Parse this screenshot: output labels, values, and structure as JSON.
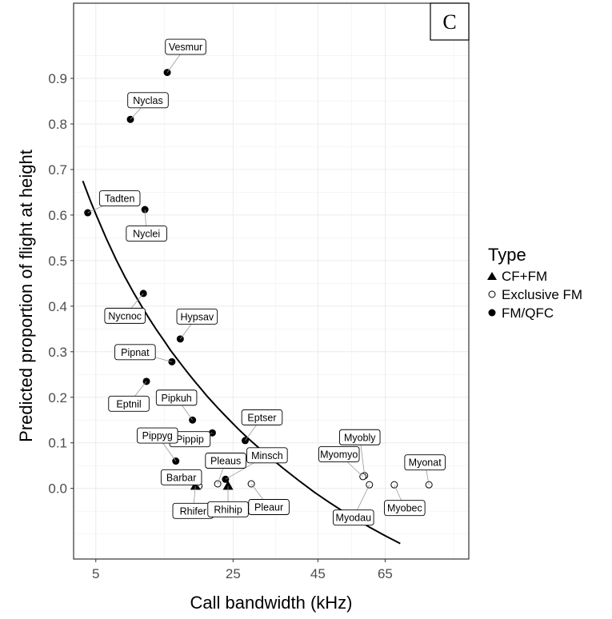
{
  "chart_data": {
    "type": "scatter",
    "panel_label": "C",
    "xlabel": "Call bandwidth (kHz)",
    "ylabel": "Predicted proportion of flight at height",
    "x_scale": "sqrt",
    "xlim": [
      3.2,
      95
    ],
    "ylim": [
      -0.155,
      1.065
    ],
    "x_ticks": [
      5,
      25,
      45,
      65
    ],
    "y_ticks": [
      0.0,
      0.1,
      0.2,
      0.3,
      0.4,
      0.5,
      0.6,
      0.7,
      0.8,
      0.9
    ],
    "grid": true,
    "legend": {
      "title": "Type",
      "placement": "right",
      "items": [
        {
          "label": "CF+FM",
          "shape": "triangle"
        },
        {
          "label": "Exclusive FM",
          "shape": "open-circle"
        },
        {
          "label": "FM/QFC",
          "shape": "filled-circle"
        }
      ]
    },
    "points": [
      {
        "name": "Vesmur",
        "x": 13.5,
        "y": 0.913,
        "type": "FM/QFC"
      },
      {
        "name": "Nyclas",
        "x": 8.6,
        "y": 0.81,
        "type": "FM/QFC"
      },
      {
        "name": "Tadten",
        "x": 4.3,
        "y": 0.605,
        "type": "FM/QFC"
      },
      {
        "name": "Nyclei",
        "x": 10.4,
        "y": 0.612,
        "type": "FM/QFC"
      },
      {
        "name": "Nycnoc",
        "x": 10.2,
        "y": 0.428,
        "type": "FM/QFC"
      },
      {
        "name": "Hypsav",
        "x": 15.5,
        "y": 0.328,
        "type": "FM/QFC"
      },
      {
        "name": "Pipnat",
        "x": 14.2,
        "y": 0.278,
        "type": "FM/QFC"
      },
      {
        "name": "Eptnil",
        "x": 10.6,
        "y": 0.235,
        "type": "FM/QFC"
      },
      {
        "name": "Pipkuh",
        "x": 17.5,
        "y": 0.15,
        "type": "FM/QFC"
      },
      {
        "name": "Pippip",
        "x": 21.0,
        "y": 0.122,
        "type": "FM/QFC"
      },
      {
        "name": "Eptser",
        "x": 27.5,
        "y": 0.105,
        "type": "FM/QFC"
      },
      {
        "name": "Pippyg",
        "x": 14.8,
        "y": 0.06,
        "type": "FM/QFC"
      },
      {
        "name": "Minsch",
        "x": 23.5,
        "y": 0.02,
        "type": "FM/QFC"
      },
      {
        "name": "Barbar",
        "x": 18.6,
        "y": 0.005,
        "type": "Exclusive FM"
      },
      {
        "name": "Rhifer",
        "x": 18.0,
        "y": 0.005,
        "type": "CF+FM"
      },
      {
        "name": "Rhihip",
        "x": 24.0,
        "y": 0.005,
        "type": "CF+FM"
      },
      {
        "name": "Pleaus",
        "x": 22.0,
        "y": 0.01,
        "type": "Exclusive FM"
      },
      {
        "name": "Pleaur",
        "x": 28.8,
        "y": 0.01,
        "type": "Exclusive FM"
      },
      {
        "name": "Myobly",
        "x": 58.5,
        "y": 0.028,
        "type": "Exclusive FM"
      },
      {
        "name": "Myomyo",
        "x": 58.0,
        "y": 0.026,
        "type": "Exclusive FM"
      },
      {
        "name": "Myodau",
        "x": 60.0,
        "y": 0.008,
        "type": "Exclusive FM"
      },
      {
        "name": "Myobec",
        "x": 68.0,
        "y": 0.008,
        "type": "Exclusive FM"
      },
      {
        "name": "Myonat",
        "x": 80.0,
        "y": 0.008,
        "type": "Exclusive FM"
      }
    ],
    "fit_curve": {
      "x": [
        3.9,
        4.5,
        5,
        6,
        7,
        8,
        9,
        10,
        11,
        12,
        13,
        14,
        15,
        16,
        17,
        18,
        19,
        20,
        22,
        24,
        26,
        28,
        30,
        33,
        36,
        40,
        44,
        48,
        52,
        56,
        60,
        65,
        70
      ],
      "y": [
        0.675,
        0.633,
        0.602,
        0.548,
        0.502,
        0.463,
        0.429,
        0.399,
        0.372,
        0.347,
        0.325,
        0.303,
        0.284,
        0.266,
        0.249,
        0.233,
        0.218,
        0.203,
        0.177,
        0.153,
        0.131,
        0.111,
        0.093,
        0.068,
        0.045,
        0.017,
        -0.008,
        -0.03,
        -0.05,
        -0.068,
        -0.085,
        -0.104,
        -0.121
      ]
    }
  }
}
